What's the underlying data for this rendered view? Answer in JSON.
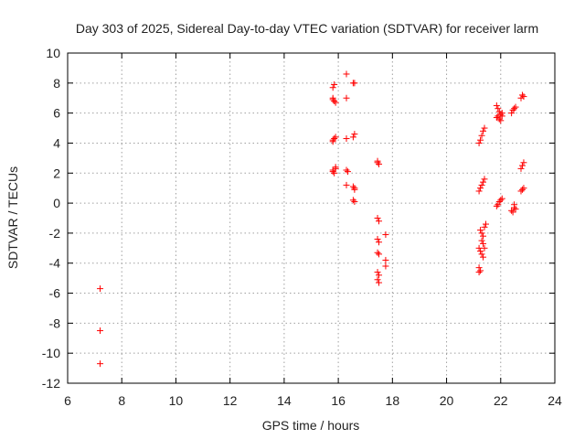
{
  "chart_data": {
    "type": "scatter",
    "title": "Day 303 of 2025, Sidereal Day-to-day VTEC variation (SDTVAR) for receiver larm",
    "xlabel": "GPS time / hours",
    "ylabel": "SDTVAR / TECUs",
    "xlim": [
      6,
      24
    ],
    "ylim": [
      -12,
      10
    ],
    "xticks": [
      "6",
      "8",
      "10",
      "12",
      "14",
      "16",
      "18",
      "20",
      "22",
      "24"
    ],
    "yticks": [
      "10",
      "8",
      "6",
      "4",
      "2",
      "0",
      "-2",
      "-4",
      "-6",
      "-8",
      "-10",
      "-12"
    ],
    "grid": true,
    "marker": "+",
    "marker_color": "#ff0000",
    "series": [
      {
        "name": "SDTVAR",
        "points": [
          [
            7.2,
            -5.7
          ],
          [
            7.2,
            -8.5
          ],
          [
            7.2,
            -10.7
          ],
          [
            15.8,
            7.7
          ],
          [
            15.85,
            7.9
          ],
          [
            15.8,
            7.0
          ],
          [
            15.85,
            6.8
          ],
          [
            15.9,
            6.7
          ],
          [
            15.8,
            6.9
          ],
          [
            15.8,
            4.2
          ],
          [
            15.85,
            4.3
          ],
          [
            15.9,
            4.4
          ],
          [
            15.8,
            4.1
          ],
          [
            15.8,
            2.1
          ],
          [
            15.85,
            2.0
          ],
          [
            15.9,
            2.3
          ],
          [
            15.8,
            2.2
          ],
          [
            15.9,
            2.4
          ],
          [
            16.3,
            8.6
          ],
          [
            16.3,
            7.0
          ],
          [
            16.3,
            4.3
          ],
          [
            16.3,
            2.2
          ],
          [
            16.35,
            2.1
          ],
          [
            16.3,
            1.2
          ],
          [
            16.55,
            8.0
          ],
          [
            16.6,
            8.0
          ],
          [
            16.55,
            4.4
          ],
          [
            16.6,
            4.6
          ],
          [
            16.55,
            1.1
          ],
          [
            16.6,
            1.0
          ],
          [
            16.6,
            0.9
          ],
          [
            16.55,
            0.2
          ],
          [
            16.6,
            0.1
          ],
          [
            17.45,
            2.8
          ],
          [
            17.5,
            2.6
          ],
          [
            17.45,
            2.7
          ],
          [
            17.45,
            -1.0
          ],
          [
            17.5,
            -1.2
          ],
          [
            17.45,
            -2.4
          ],
          [
            17.5,
            -2.6
          ],
          [
            17.45,
            -3.3
          ],
          [
            17.5,
            -3.4
          ],
          [
            17.45,
            -4.6
          ],
          [
            17.5,
            -4.8
          ],
          [
            17.45,
            -5.1
          ],
          [
            17.5,
            -5.3
          ],
          [
            17.75,
            -2.1
          ],
          [
            17.75,
            -3.8
          ],
          [
            17.75,
            -4.2
          ],
          [
            21.2,
            4.0
          ],
          [
            21.25,
            4.2
          ],
          [
            21.3,
            4.5
          ],
          [
            21.35,
            4.8
          ],
          [
            21.4,
            5.0
          ],
          [
            21.2,
            0.8
          ],
          [
            21.25,
            1.0
          ],
          [
            21.3,
            1.2
          ],
          [
            21.35,
            1.4
          ],
          [
            21.4,
            1.6
          ],
          [
            21.25,
            -1.8
          ],
          [
            21.3,
            -2.0
          ],
          [
            21.35,
            -2.2
          ],
          [
            21.4,
            -1.6
          ],
          [
            21.45,
            -1.4
          ],
          [
            21.3,
            -2.5
          ],
          [
            21.35,
            -2.7
          ],
          [
            21.2,
            -3.0
          ],
          [
            21.25,
            -3.2
          ],
          [
            21.3,
            -3.4
          ],
          [
            21.35,
            -3.6
          ],
          [
            21.4,
            -3.0
          ],
          [
            21.2,
            -4.3
          ],
          [
            21.25,
            -4.5
          ],
          [
            21.2,
            -4.6
          ],
          [
            21.85,
            6.5
          ],
          [
            21.9,
            6.3
          ],
          [
            21.95,
            6.1
          ],
          [
            22.0,
            5.9
          ],
          [
            22.05,
            6.0
          ],
          [
            21.85,
            5.7
          ],
          [
            21.9,
            5.8
          ],
          [
            21.95,
            5.6
          ],
          [
            22.0,
            5.5
          ],
          [
            22.05,
            5.8
          ],
          [
            21.85,
            -0.2
          ],
          [
            21.9,
            -0.1
          ],
          [
            21.95,
            0.1
          ],
          [
            22.0,
            0.2
          ],
          [
            22.05,
            0.3
          ],
          [
            22.4,
            6.0
          ],
          [
            22.45,
            6.2
          ],
          [
            22.5,
            6.3
          ],
          [
            22.55,
            6.4
          ],
          [
            22.4,
            -0.5
          ],
          [
            22.45,
            -0.6
          ],
          [
            22.5,
            -0.3
          ],
          [
            22.55,
            -0.4
          ],
          [
            22.5,
            -0.1
          ],
          [
            22.75,
            7.0
          ],
          [
            22.8,
            7.2
          ],
          [
            22.85,
            7.1
          ],
          [
            22.75,
            2.3
          ],
          [
            22.8,
            2.5
          ],
          [
            22.85,
            2.7
          ],
          [
            22.75,
            0.8
          ],
          [
            22.8,
            0.9
          ],
          [
            22.85,
            1.0
          ]
        ]
      }
    ]
  }
}
